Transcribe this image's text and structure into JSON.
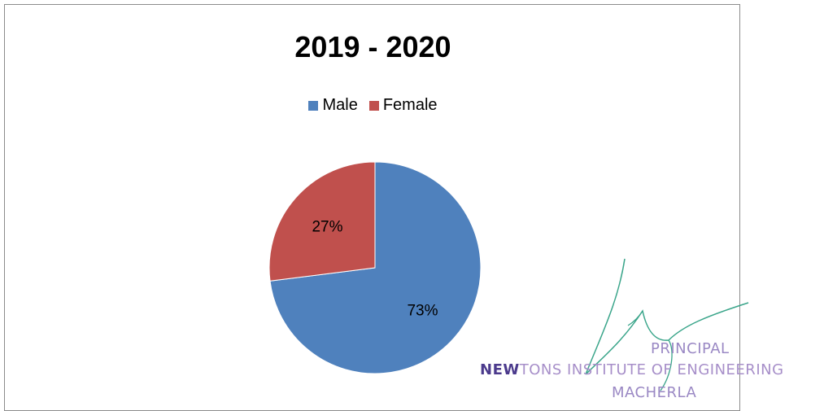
{
  "chart_data": {
    "type": "pie",
    "title": "2019 - 2020",
    "legend_position": "top",
    "slices": [
      {
        "name": "Male",
        "value": 73,
        "label": "73%",
        "color": "#4f81bd"
      },
      {
        "name": "Female",
        "value": 27,
        "label": "27%",
        "color": "#c0504d"
      }
    ]
  },
  "stamp": {
    "line1": "PRINCIPAL",
    "line2_bold": "NEW",
    "line2_rest": "TONS INSTITUTE OF ENGINEERING",
    "line3": "MACHERLA"
  }
}
